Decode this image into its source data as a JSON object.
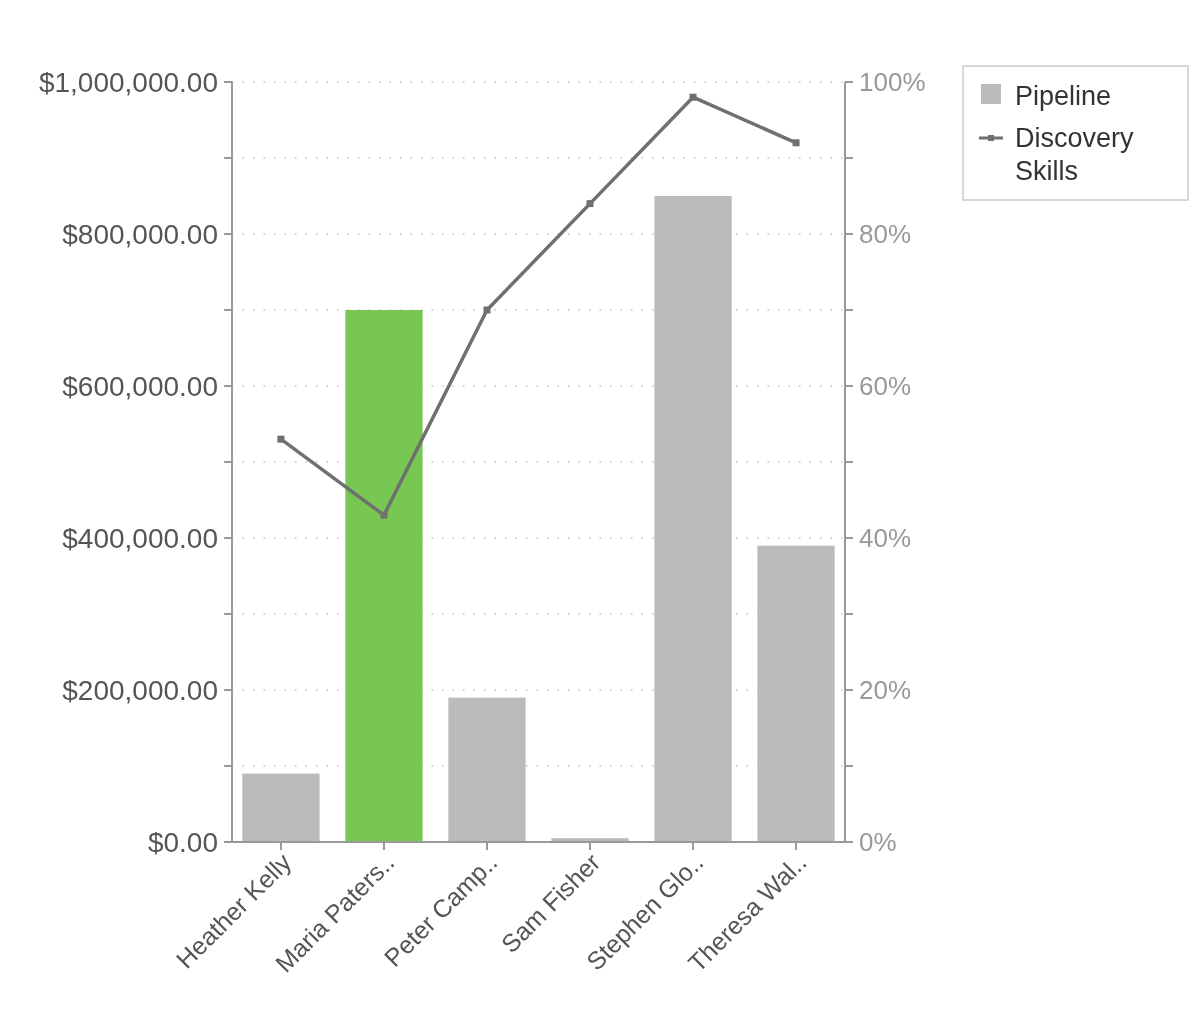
{
  "chart_data": {
    "type": "bar",
    "categories": [
      "Heather Kelly",
      "Maria Paters..",
      "Peter Camp..",
      "Sam Fisher",
      "Stephen Glo..",
      "Theresa Wal.."
    ],
    "series": [
      {
        "name": "Pipeline",
        "color": "#bbbbbd",
        "colors": [
          "#bbbbbd",
          "#77c752",
          "#bbbbbd",
          "#bbbbbd",
          "#bbbbbd",
          "#bbbbbd"
        ],
        "values": [
          90000,
          700000,
          190000,
          5000,
          850000,
          390000
        ]
      },
      {
        "name": "Discovery Skills",
        "type": "line",
        "axis": "y2",
        "color": "#707070",
        "marker": "square",
        "values": [
          53,
          43,
          70,
          84,
          98,
          92
        ]
      }
    ],
    "ylim": [
      0,
      1000000
    ],
    "yticks": [
      {
        "value": 0,
        "label": "$0.00"
      },
      {
        "value": 100000,
        "label": null
      },
      {
        "value": 200000,
        "label": "$200,000.00"
      },
      {
        "value": 300000,
        "label": null
      },
      {
        "value": 400000,
        "label": "$400,000.00"
      },
      {
        "value": 500000,
        "label": null
      },
      {
        "value": 600000,
        "label": "$600,000.00"
      },
      {
        "value": 700000,
        "label": null
      },
      {
        "value": 800000,
        "label": "$800,000.00"
      },
      {
        "value": 900000,
        "label": null
      },
      {
        "value": 1000000,
        "label": "$1,000,000.00"
      }
    ],
    "y2lim": [
      0,
      100
    ],
    "y2ticks": [
      {
        "value": 0,
        "label": "0%"
      },
      {
        "value": 10,
        "label": null
      },
      {
        "value": 20,
        "label": "20%"
      },
      {
        "value": 30,
        "label": null
      },
      {
        "value": 40,
        "label": "40%"
      },
      {
        "value": 50,
        "label": null
      },
      {
        "value": 60,
        "label": "60%"
      },
      {
        "value": 70,
        "label": null
      },
      {
        "value": 80,
        "label": "80%"
      },
      {
        "value": 90,
        "label": null
      },
      {
        "value": 100,
        "label": "100%"
      }
    ],
    "grid": "y",
    "legend": "top right"
  }
}
